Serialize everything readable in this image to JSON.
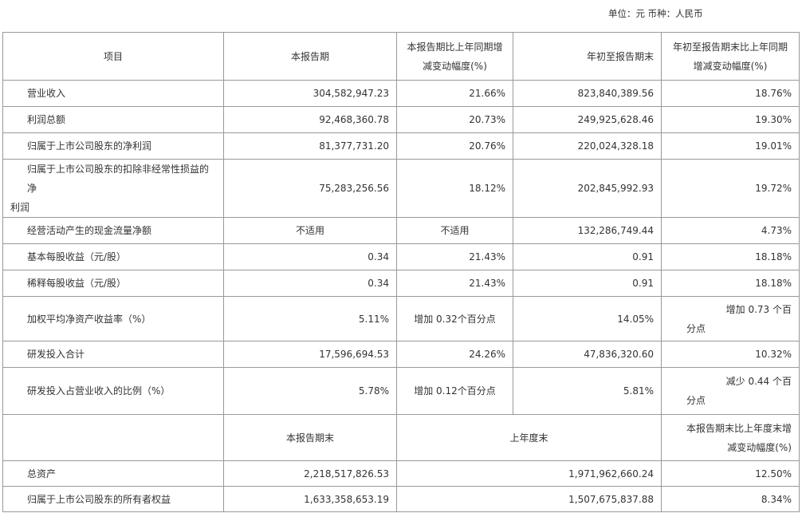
{
  "unit_note": "单位：元 币种：人民币",
  "header": {
    "item": "项目",
    "current_period": "本报告期",
    "current_change": "本报告期比上年同期增减变动幅度(%)",
    "ytd": "年初至报告期末",
    "ytd_change": "年初至报告期末比上年同期增减变动幅度(%)"
  },
  "rows": [
    {
      "label": "营业收入",
      "current": "304,582,947.23",
      "current_change": "21.66%",
      "ytd": "823,840,389.56",
      "ytd_change": "18.76%"
    },
    {
      "label": "利润总额",
      "current": "92,468,360.78",
      "current_change": "20.73%",
      "ytd": "249,925,628.46",
      "ytd_change": "19.30%"
    },
    {
      "label": "归属于上市公司股东的净利润",
      "current": "81,377,731.20",
      "current_change": "20.76%",
      "ytd": "220,024,328.18",
      "ytd_change": "19.01%"
    },
    {
      "label_line1": "归属于上市公司股东的扣除非经常性损益的净",
      "label_line2": "利润",
      "current": "75,283,256.56",
      "current_change": "18.12%",
      "ytd": "202,845,992.93",
      "ytd_change": "19.72%"
    },
    {
      "label": "经营活动产生的现金流量净额",
      "current": "不适用",
      "current_change": "不适用",
      "ytd": "132,286,749.44",
      "ytd_change": "4.73%"
    },
    {
      "label": "基本每股收益（元/股）",
      "current": "0.34",
      "current_change": "21.43%",
      "ytd": "0.91",
      "ytd_change": "18.18%"
    },
    {
      "label": "稀释每股收益（元/股）",
      "current": "0.34",
      "current_change": "21.43%",
      "ytd": "0.91",
      "ytd_change": "18.18%"
    },
    {
      "label": "加权平均净资产收益率（%）",
      "current": "5.11%",
      "current_change": "增加 0.32个百分点",
      "ytd": "14.05%",
      "ytd_change_line1": "增加 0.73 个百",
      "ytd_change_line2": "分点"
    },
    {
      "label": "研发投入合计",
      "current": "17,596,694.53",
      "current_change": "24.26%",
      "ytd": "47,836,320.60",
      "ytd_change": "10.32%"
    },
    {
      "label": "研发投入占营业收入的比例（%）",
      "current": "5.78%",
      "current_change": "增加 0.12个百分点",
      "ytd": "5.81%",
      "ytd_change_line1": "减少 0.44 个百",
      "ytd_change_line2": "分点"
    }
  ],
  "header2": {
    "period_end": "本报告期末",
    "last_year_end": "上年度末",
    "change_line1": "本报告期末比上年度末增",
    "change_line2": "减变动幅度(%)"
  },
  "rows2": [
    {
      "label": "总资产",
      "period_end": "2,218,517,826.53",
      "last_year_end": "1,971,962,660.24",
      "change": "12.50%"
    },
    {
      "label": "归属于上市公司股东的所有者权益",
      "period_end": "1,633,358,653.19",
      "last_year_end": "1,507,675,837.88",
      "change": "8.34%"
    }
  ]
}
